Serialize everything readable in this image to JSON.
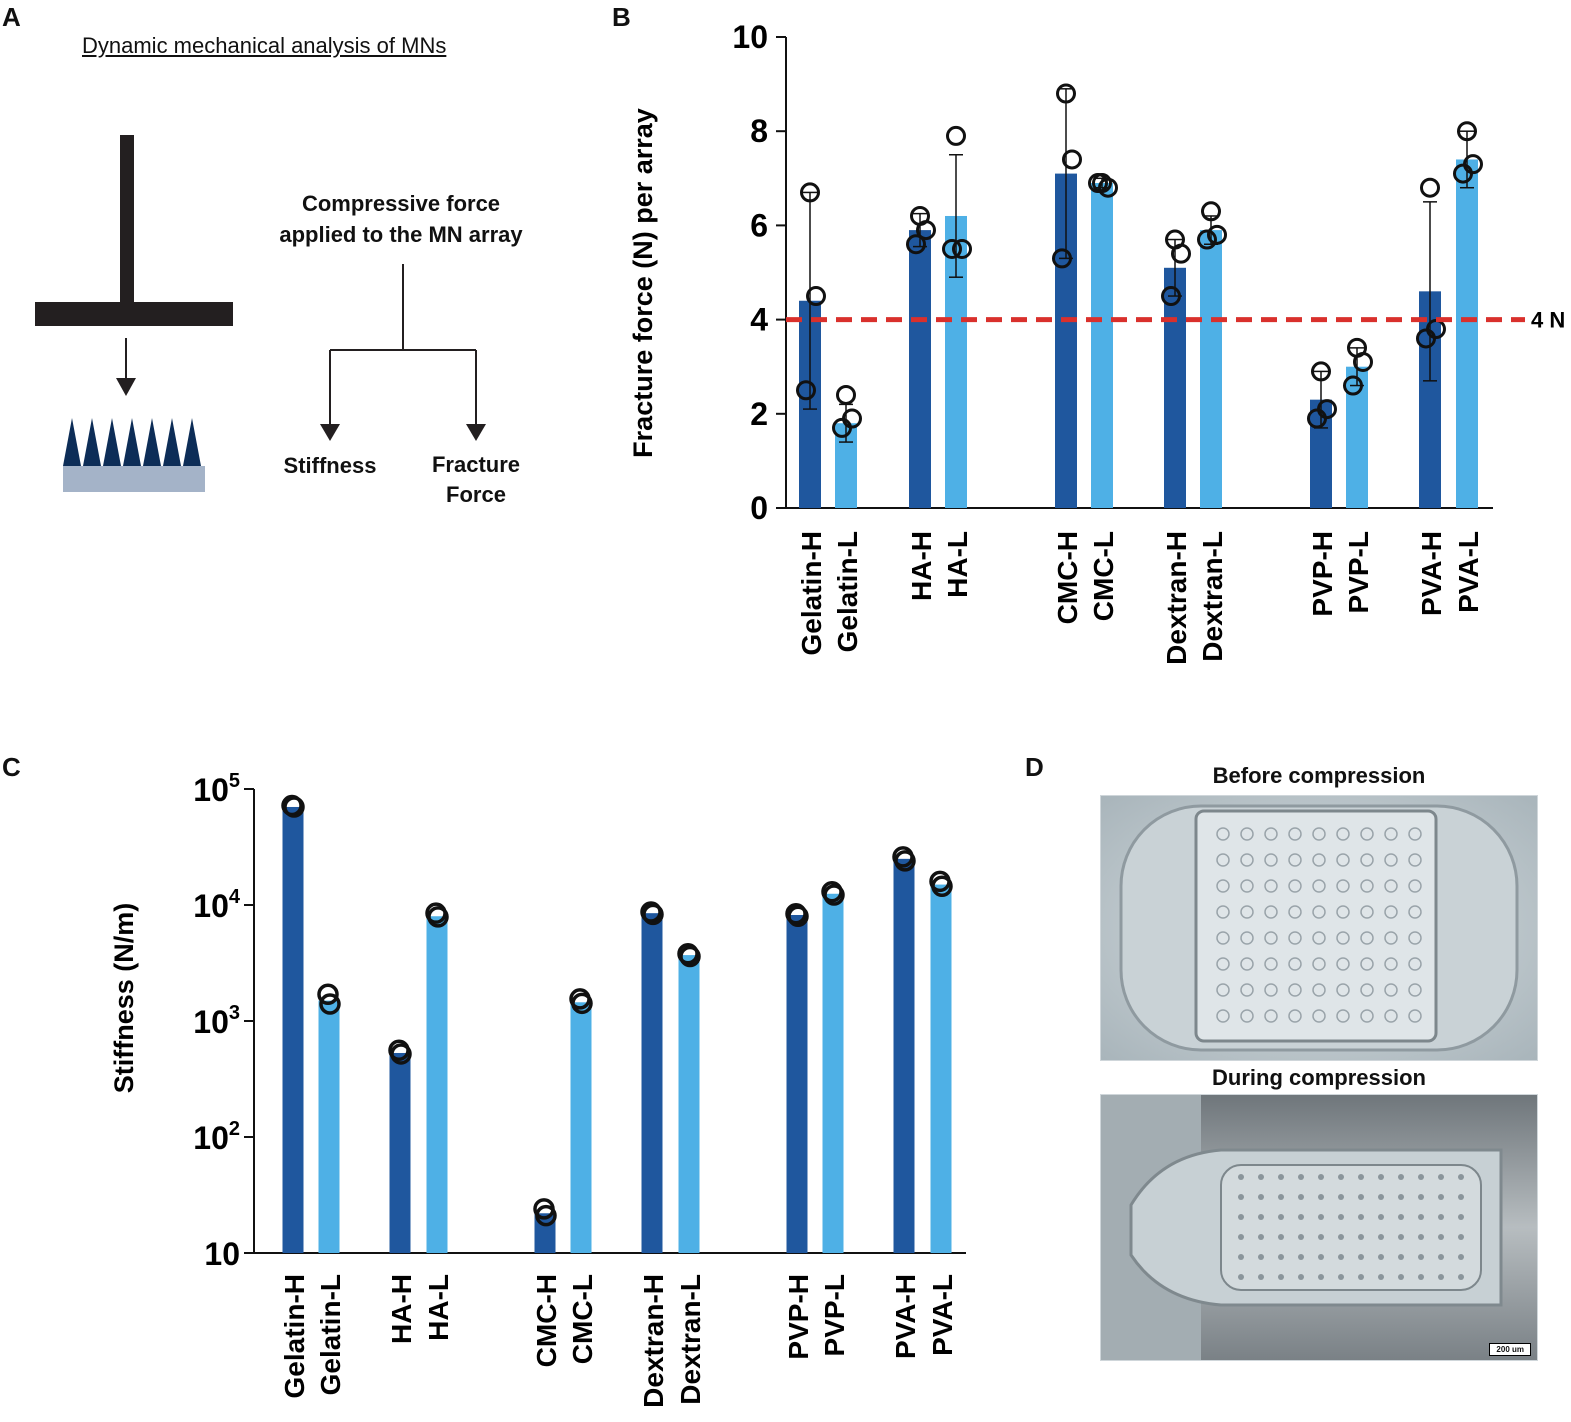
{
  "panels": {
    "a": "A",
    "b": "B",
    "c": "C",
    "d": "D"
  },
  "schematic": {
    "title": "Dynamic mechanical analysis of MNs",
    "force_line1": "Compressive force",
    "force_line2": "applied to the MN array",
    "branch_left": "Stiffness",
    "branch_right_line1": "Fracture",
    "branch_right_line2": "Force"
  },
  "photos": {
    "before_title": "Before compression",
    "during_title": "During compression",
    "scale_bar": "200 um"
  },
  "colors": {
    "dark_bar": "#1f579e",
    "light_bar": "#4eb0e6",
    "threshold": "#d9302c"
  },
  "chart_data": [
    {
      "type": "bar",
      "panel": "B",
      "ylabel": "Fracture force (N) per array",
      "ylim": [
        0,
        10
      ],
      "yticks": [
        "0",
        "2",
        "4",
        "6",
        "8",
        "10"
      ],
      "categories": [
        "Gelatin-H",
        "Gelatin-L",
        "HA-H",
        "HA-L",
        "CMC-H",
        "CMC-L",
        "Dextran-H",
        "Dextran-L",
        "PVP-H",
        "PVP-L",
        "PVA-H",
        "PVA-L"
      ],
      "values": [
        4.4,
        1.8,
        5.9,
        6.2,
        7.1,
        6.9,
        5.1,
        5.9,
        2.3,
        3.0,
        4.6,
        7.4
      ],
      "errors": [
        2.3,
        0.4,
        0.35,
        1.3,
        1.8,
        0.1,
        0.6,
        0.3,
        0.6,
        0.4,
        1.9,
        0.6
      ],
      "points": [
        [
          6.7,
          4.5,
          2.5
        ],
        [
          2.4,
          1.9,
          1.7
        ],
        [
          6.2,
          5.9,
          5.6
        ],
        [
          7.9,
          5.5,
          5.5
        ],
        [
          8.8,
          7.4,
          5.3
        ],
        [
          6.9,
          6.8,
          6.9
        ],
        [
          5.7,
          5.4,
          4.5
        ],
        [
          6.3,
          5.8,
          5.7
        ],
        [
          2.9,
          2.1,
          1.9
        ],
        [
          3.4,
          3.1,
          2.6
        ],
        [
          6.8,
          3.8,
          3.6
        ],
        [
          8.0,
          7.3,
          7.1
        ]
      ],
      "threshold": 4,
      "threshold_label": "4 N"
    },
    {
      "type": "bar",
      "panel": "C",
      "ylabel": "Stiffness (N/m)",
      "yscale": "log",
      "ylim": [
        10,
        100000
      ],
      "ytick_labels": [
        {
          "base": "10",
          "exp": ""
        },
        {
          "base": "10",
          "exp": "2"
        },
        {
          "base": "10",
          "exp": "3"
        },
        {
          "base": "10",
          "exp": "4"
        },
        {
          "base": "10",
          "exp": "5"
        }
      ],
      "categories": [
        "Gelatin-H",
        "Gelatin-L",
        "HA-H",
        "HA-L",
        "CMC-H",
        "CMC-L",
        "Dextran-H",
        "Dextran-L",
        "PVP-H",
        "PVP-L",
        "PVA-H",
        "PVA-L"
      ],
      "values": [
        70000,
        1500,
        530,
        8000,
        22,
        1450,
        8500,
        3700,
        8200,
        12500,
        25000,
        15000
      ],
      "points": [
        [
          72000,
          70000
        ],
        [
          1700,
          1400
        ],
        [
          560,
          520
        ],
        [
          8500,
          7900
        ],
        [
          24,
          21
        ],
        [
          1550,
          1420
        ],
        [
          8700,
          8300
        ],
        [
          3800,
          3600
        ],
        [
          8400,
          8000
        ],
        [
          13000,
          12200
        ],
        [
          26000,
          24000
        ],
        [
          16000,
          14500
        ]
      ]
    }
  ]
}
